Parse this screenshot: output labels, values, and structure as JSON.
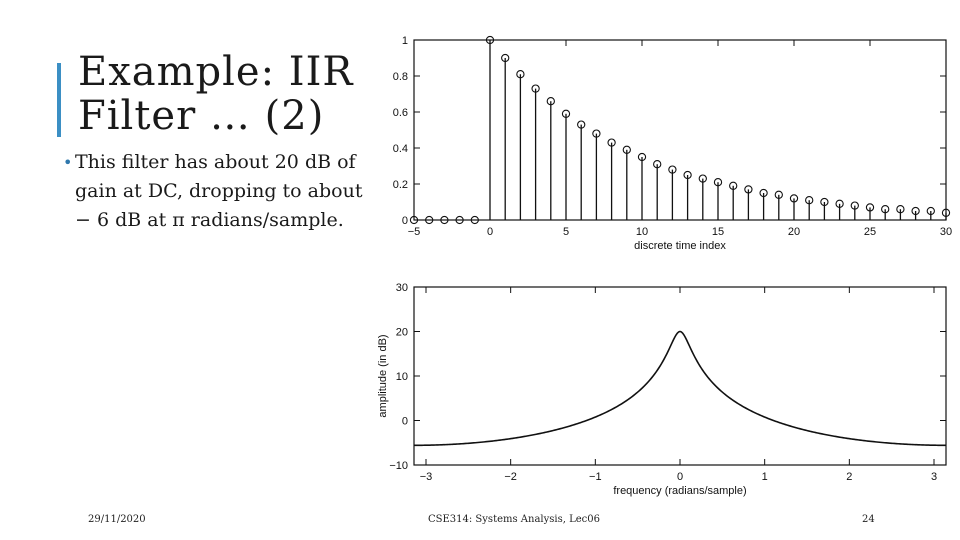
{
  "slide": {
    "title_line1": "Example: IIR",
    "title_line2": "Filter … (2)",
    "bullet": "This filter has about 20 dB of gain at DC, dropping to about − 6 dB at π radians/sample.",
    "footer_date": "29/11/2020",
    "footer_course": "CSE314: Systems Analysis, Lec06",
    "page_number": "24",
    "accent_color": "#3b8fc4"
  },
  "chart_data": [
    {
      "type": "stem",
      "title": "",
      "xlabel": "discrete time index",
      "ylabel": "",
      "xlim": [
        -5,
        30
      ],
      "ylim": [
        0,
        1
      ],
      "xticks": [
        -5,
        0,
        5,
        10,
        15,
        20,
        25,
        30
      ],
      "xtick_labels": [
        "−5",
        "0",
        "5",
        "10",
        "15",
        "20",
        "25",
        "30"
      ],
      "yticks": [
        0,
        0.2,
        0.4,
        0.6,
        0.8,
        1
      ],
      "ytick_labels": [
        "0",
        "0.2",
        "0.4",
        "0.6",
        "0.8",
        "1"
      ],
      "x": [
        -5,
        -4,
        -3,
        -2,
        -1,
        0,
        1,
        2,
        3,
        4,
        5,
        6,
        7,
        8,
        9,
        10,
        11,
        12,
        13,
        14,
        15,
        16,
        17,
        18,
        19,
        20,
        21,
        22,
        23,
        24,
        25,
        26,
        27,
        28,
        29,
        30
      ],
      "y": [
        0,
        0,
        0,
        0,
        0,
        1,
        0.9,
        0.81,
        0.73,
        0.66,
        0.59,
        0.53,
        0.48,
        0.43,
        0.39,
        0.35,
        0.31,
        0.28,
        0.25,
        0.23,
        0.21,
        0.19,
        0.17,
        0.15,
        0.14,
        0.12,
        0.11,
        0.1,
        0.09,
        0.08,
        0.07,
        0.06,
        0.06,
        0.05,
        0.05,
        0.04
      ],
      "grid": false
    },
    {
      "type": "line",
      "title": "",
      "xlabel": "frequency (radians/sample)",
      "ylabel": "amplitude (in dB)",
      "xlim": [
        -3.1416,
        3.1416
      ],
      "ylim": [
        -10,
        30
      ],
      "xticks": [
        -3,
        -2,
        -1,
        0,
        1,
        2,
        3
      ],
      "xtick_labels": [
        "−3",
        "−2",
        "−1",
        "0",
        "1",
        "2",
        "3"
      ],
      "yticks": [
        -10,
        0,
        10,
        20,
        30
      ],
      "ytick_labels": [
        "−10",
        "0",
        "10",
        "20",
        "30"
      ],
      "curve_a": 0.9,
      "x": [
        -3.14,
        -2.5,
        -2,
        -1.5,
        -1,
        -0.5,
        -0.2,
        0,
        0.2,
        0.5,
        1,
        1.5,
        2,
        2.5,
        3.14
      ],
      "y": [
        -5.6,
        -5.1,
        -4.1,
        -2.5,
        0.2,
        5.6,
        12.4,
        20,
        12.4,
        5.6,
        0.2,
        -2.5,
        -4.1,
        -5.1,
        -5.6
      ],
      "grid": false
    }
  ]
}
